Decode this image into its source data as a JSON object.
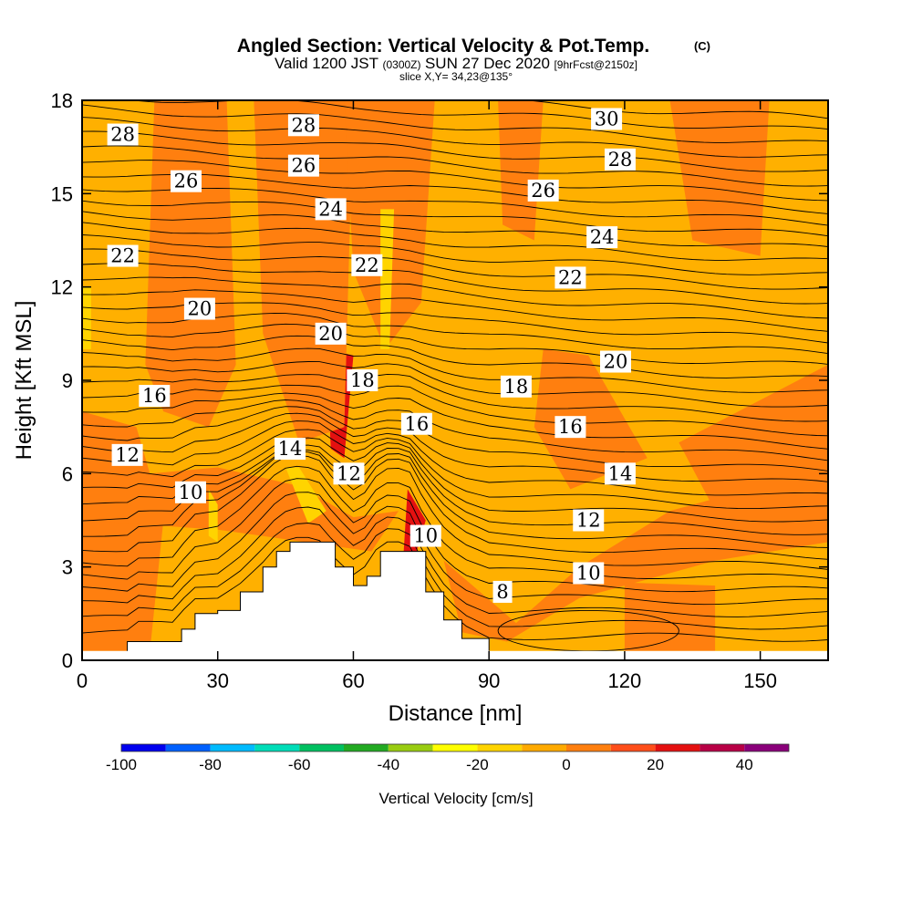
{
  "chart_data": {
    "type": "heatmap",
    "title": "Angled Section: Vertical Velocity & Pot.Temp.",
    "title_units": "(C)",
    "subtitle_main": "Valid 1200 JST",
    "subtitle_utc": "(0300Z)",
    "subtitle_date": "SUN 27 Dec 2020",
    "subtitle_fcst": "[9hrFcst@2150z]",
    "slice_info": "slice X,Y= 34,23@135°",
    "xlabel": "Distance [nm]",
    "ylabel": "Height [Kft MSL]",
    "xlim": [
      0,
      165
    ],
    "ylim": [
      0,
      18
    ],
    "x_ticks": [
      0,
      30,
      60,
      90,
      120,
      150
    ],
    "y_ticks": [
      0,
      3,
      6,
      9,
      12,
      15,
      18
    ],
    "colorbar": {
      "label": "Vertical Velocity [cm/s]",
      "range": [
        -100,
        50
      ],
      "step": 10,
      "tick_values": [
        -100,
        -80,
        -60,
        -40,
        -20,
        0,
        20,
        40
      ],
      "colors": [
        "#0000ee",
        "#0060ff",
        "#00bbff",
        "#00ddb8",
        "#00c060",
        "#22aa22",
        "#99cc11",
        "#ffff00",
        "#ffd400",
        "#ffaa00",
        "#ff7f0f",
        "#ff4e1a",
        "#e41010",
        "#b80046",
        "#8a007a"
      ]
    },
    "terrain_profile": [
      [
        10,
        0.6
      ],
      [
        20,
        0.6
      ],
      [
        22,
        1.0
      ],
      [
        25,
        1.5
      ],
      [
        30,
        1.6
      ],
      [
        35,
        2.2
      ],
      [
        40,
        3.0
      ],
      [
        43,
        3.5
      ],
      [
        46,
        3.8
      ],
      [
        52,
        3.8
      ],
      [
        56,
        3.0
      ],
      [
        60,
        2.4
      ],
      [
        63,
        2.7
      ],
      [
        66,
        3.5
      ],
      [
        72,
        3.5
      ],
      [
        76,
        2.2
      ],
      [
        80,
        1.3
      ],
      [
        84,
        0.7
      ],
      [
        90,
        0.3
      ]
    ],
    "velocity_regions": [
      {
        "name": "strong-updraft",
        "value_cm_s": 25,
        "bands": [
          [
            [
              20,
              18
            ],
            [
              28,
              18
            ],
            [
              27,
              12.5
            ],
            [
              23,
              12.0
            ]
          ],
          [
            [
              42,
              18
            ],
            [
              52,
              18
            ],
            [
              50,
              13.5
            ],
            [
              44,
              14.0
            ]
          ],
          [
            [
              62,
              18
            ],
            [
              70,
              18
            ],
            [
              68,
              15
            ],
            [
              64,
              14.5
            ]
          ],
          [
            [
              54,
              10
            ],
            [
              60,
              9.8
            ],
            [
              58,
              6.5
            ],
            [
              55,
              6.8
            ]
          ],
          [
            [
              72,
              5.5
            ],
            [
              76,
              4.5
            ],
            [
              73,
              3.0
            ],
            [
              71,
              3.2
            ]
          ]
        ]
      },
      {
        "name": "moderate-updraft",
        "value_cm_s": 5,
        "bands": [
          [
            [
              16,
              18
            ],
            [
              32,
              18
            ],
            [
              34,
              9.5
            ],
            [
              28,
              7.5
            ],
            [
              18,
              8.0
            ],
            [
              14,
              9.5
            ]
          ],
          [
            [
              38,
              18
            ],
            [
              60,
              18
            ],
            [
              58,
              7.5
            ],
            [
              48,
              7.0
            ],
            [
              40,
              10.5
            ]
          ],
          [
            [
              58,
              18
            ],
            [
              78,
              18
            ],
            [
              75,
              11.5
            ],
            [
              67,
              10.0
            ],
            [
              60,
              12.5
            ]
          ],
          [
            [
              92,
              18
            ],
            [
              102,
              18
            ],
            [
              100,
              13.5
            ],
            [
              93,
              14.0
            ]
          ],
          [
            [
              130,
              18
            ],
            [
              152,
              18
            ],
            [
              150,
              13.0
            ],
            [
              135,
              13.5
            ]
          ],
          [
            [
              0,
              8.0
            ],
            [
              12,
              7.5
            ],
            [
              18,
              4.5
            ],
            [
              15,
              0.3
            ],
            [
              0,
              0.3
            ]
          ],
          [
            [
              0,
              5.8
            ],
            [
              30,
              6.2
            ],
            [
              48,
              5.6
            ],
            [
              60,
              4.6
            ],
            [
              70,
              4.8
            ],
            [
              64,
              3.5
            ],
            [
              30,
              4.2
            ],
            [
              0,
              4.5
            ]
          ],
          [
            [
              80,
              3.2
            ],
            [
              96,
              1.2
            ],
            [
              110,
              3.0
            ],
            [
              130,
              4.8
            ],
            [
              165,
              6.2
            ],
            [
              165,
              3.8
            ],
            [
              140,
              3.2
            ],
            [
              110,
              2.0
            ],
            [
              94,
              0.6
            ],
            [
              84,
              0.9
            ]
          ],
          [
            [
              102,
              10.0
            ],
            [
              112,
              9.8
            ],
            [
              125,
              6.5
            ],
            [
              108,
              5.5
            ],
            [
              100,
              7.5
            ]
          ],
          [
            [
              132,
              7.0
            ],
            [
              165,
              9.5
            ],
            [
              165,
              5.5
            ],
            [
              140,
              4.8
            ]
          ],
          [
            [
              120,
              2.5
            ],
            [
              140,
              2.4
            ],
            [
              140,
              0.3
            ],
            [
              120,
              0.3
            ]
          ]
        ]
      },
      {
        "name": "weak-downdraft",
        "value_cm_s": -15,
        "bands": [
          [
            [
              66,
              14.5
            ],
            [
              69,
              14.5
            ],
            [
              68,
              10.0
            ],
            [
              66,
              10.0
            ]
          ],
          [
            [
              28,
              5.5
            ],
            [
              30,
              5.0
            ],
            [
              30,
              3.8
            ],
            [
              28,
              4.0
            ]
          ],
          [
            [
              45,
              6.2
            ],
            [
              48,
              6.2
            ],
            [
              54,
              4.8
            ],
            [
              50,
              4.4
            ]
          ],
          [
            [
              0,
              12.0
            ],
            [
              2,
              12.0
            ],
            [
              2,
              10.0
            ],
            [
              0,
              10.0
            ]
          ]
        ]
      }
    ],
    "theta_contour_levels": [
      8,
      10,
      12,
      14,
      16,
      18,
      20,
      22,
      24,
      26,
      28,
      30
    ],
    "contour_labels": [
      {
        "value": "28",
        "x": 9,
        "y": 16.9
      },
      {
        "value": "26",
        "x": 23,
        "y": 15.4
      },
      {
        "value": "28",
        "x": 49,
        "y": 17.2
      },
      {
        "value": "26",
        "x": 49,
        "y": 15.9
      },
      {
        "value": "24",
        "x": 55,
        "y": 14.5
      },
      {
        "value": "22",
        "x": 9,
        "y": 13.0
      },
      {
        "value": "22",
        "x": 63,
        "y": 12.7
      },
      {
        "value": "20",
        "x": 26,
        "y": 11.3
      },
      {
        "value": "20",
        "x": 55,
        "y": 10.5
      },
      {
        "value": "18",
        "x": 62,
        "y": 9.0
      },
      {
        "value": "16",
        "x": 16,
        "y": 8.5
      },
      {
        "value": "16",
        "x": 74,
        "y": 7.6
      },
      {
        "value": "14",
        "x": 46,
        "y": 6.8
      },
      {
        "value": "12",
        "x": 10,
        "y": 6.6
      },
      {
        "value": "12",
        "x": 59,
        "y": 6.0
      },
      {
        "value": "10",
        "x": 24,
        "y": 5.4
      },
      {
        "value": "10",
        "x": 76,
        "y": 4.0
      },
      {
        "value": "30",
        "x": 116,
        "y": 17.4
      },
      {
        "value": "28",
        "x": 119,
        "y": 16.1
      },
      {
        "value": "26",
        "x": 102,
        "y": 15.1
      },
      {
        "value": "24",
        "x": 115,
        "y": 13.6
      },
      {
        "value": "22",
        "x": 108,
        "y": 12.3
      },
      {
        "value": "20",
        "x": 118,
        "y": 9.6
      },
      {
        "value": "18",
        "x": 96,
        "y": 8.8
      },
      {
        "value": "16",
        "x": 108,
        "y": 7.5
      },
      {
        "value": "14",
        "x": 119,
        "y": 6.0
      },
      {
        "value": "12",
        "x": 112,
        "y": 4.5
      },
      {
        "value": "10",
        "x": 112,
        "y": 2.8
      },
      {
        "value": "8",
        "x": 93,
        "y": 2.2
      }
    ]
  }
}
